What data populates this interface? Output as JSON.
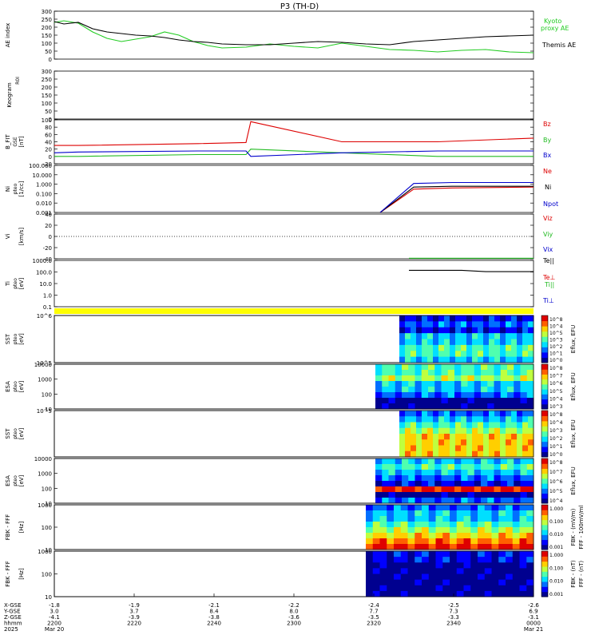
{
  "title": "P3 (TH-D)",
  "colors": {
    "kyoto": "#22cc22",
    "themis": "#000000",
    "bz": "#dd0000",
    "by": "#22bb22",
    "bx": "#0000cc",
    "ne": "#dd0000",
    "ni": "#000000",
    "npot": "#0000cc",
    "yellow_strip": "#ffff00"
  },
  "chart_data": [
    {
      "type": "line",
      "panel": "ae",
      "ylabel": "AE index",
      "ylim": [
        0,
        300
      ],
      "yticks": [
        "300",
        "250",
        "200",
        "150",
        "100",
        "50",
        "0"
      ],
      "legend": [
        "Kyoto",
        "proxy AE",
        "Themis AE"
      ],
      "series": [
        {
          "name": "Kyoto proxy AE",
          "x": [
            0,
            0.02,
            0.05,
            0.08,
            0.11,
            0.14,
            0.17,
            0.2,
            0.23,
            0.26,
            0.29,
            0.32,
            0.35,
            0.4,
            0.45,
            0.5,
            0.55,
            0.6,
            0.65,
            0.7,
            0.75,
            0.8,
            0.85,
            0.9,
            0.95,
            1.0
          ],
          "values": [
            230,
            240,
            225,
            170,
            130,
            110,
            125,
            140,
            170,
            150,
            110,
            85,
            70,
            75,
            95,
            80,
            70,
            100,
            80,
            60,
            55,
            45,
            55,
            60,
            45,
            40
          ]
        },
        {
          "name": "Themis AE",
          "x": [
            0,
            0.02,
            0.05,
            0.08,
            0.11,
            0.14,
            0.17,
            0.2,
            0.23,
            0.26,
            0.29,
            0.32,
            0.35,
            0.4,
            0.45,
            0.5,
            0.55,
            0.6,
            0.65,
            0.7,
            0.75,
            0.8,
            0.85,
            0.9,
            0.95,
            1.0
          ],
          "values": [
            235,
            220,
            230,
            190,
            170,
            160,
            150,
            145,
            135,
            120,
            110,
            105,
            95,
            90,
            90,
            100,
            110,
            105,
            95,
            90,
            110,
            120,
            130,
            140,
            145,
            150
          ]
        }
      ]
    },
    {
      "type": "line",
      "panel": "kp",
      "ylabel": "Keogram",
      "sublabel": "R0I",
      "ylim": [
        0,
        300
      ],
      "yticks": [
        "300",
        "250",
        "200",
        "150",
        "100",
        "50",
        "0"
      ]
    },
    {
      "type": "line",
      "panel": "bfit",
      "ylabel": "B_FIT",
      "sublabel": "GSE",
      "unit": "[nT]",
      "ylim": [
        -20,
        100
      ],
      "yticks": [
        "100",
        "80",
        "60",
        "40",
        "20",
        "0",
        "-20"
      ],
      "legend": [
        "Bz",
        "By",
        "Bx"
      ],
      "series": [
        {
          "name": "Bz",
          "x": [
            0,
            0.05,
            0.3,
            0.4,
            0.41,
            0.6,
            0.8,
            1.0
          ],
          "values": [
            30,
            30,
            35,
            38,
            95,
            40,
            40,
            50
          ]
        },
        {
          "name": "By",
          "x": [
            0,
            0.05,
            0.3,
            0.4,
            0.41,
            0.6,
            0.8,
            1.0
          ],
          "values": [
            0,
            0,
            5,
            5,
            20,
            10,
            0,
            0
          ]
        },
        {
          "name": "Bx",
          "x": [
            0,
            0.05,
            0.3,
            0.4,
            0.41,
            0.6,
            0.8,
            1.0
          ],
          "values": [
            10,
            12,
            15,
            15,
            0,
            10,
            15,
            15
          ]
        }
      ]
    },
    {
      "type": "line",
      "panel": "ni",
      "ylabel": "Ni",
      "sublabel": "pteo",
      "unit": "[1/cc]",
      "yticks": [
        "100.000",
        "10.000",
        "1.000",
        "0.100",
        "0.010",
        "0.001"
      ],
      "legend": [
        "Ne",
        "Ni",
        "Npot"
      ],
      "series": [
        {
          "name": "Ne",
          "x": [
            0.68,
            0.75,
            0.83,
            1.0
          ],
          "values": [
            0.001,
            0.3,
            0.4,
            0.5
          ]
        },
        {
          "name": "Ni",
          "x": [
            0.68,
            0.75,
            0.83,
            1.0
          ],
          "values": [
            0.001,
            0.5,
            0.6,
            0.6
          ]
        },
        {
          "name": "Npot",
          "x": [
            0.68,
            0.75,
            0.83,
            1.0
          ],
          "values": [
            0.001,
            1.2,
            1.5,
            1.5
          ]
        }
      ]
    },
    {
      "type": "line",
      "panel": "vi",
      "ylabel": "Vi",
      "unit": "[km/s]",
      "ylim": [
        -40,
        40
      ],
      "yticks": [
        "40",
        "20",
        "0",
        "-20",
        "-40"
      ],
      "legend": [
        "Viz",
        "Viy",
        "Vix"
      ]
    },
    {
      "type": "line",
      "panel": "ti",
      "ylabel": "Ti",
      "sublabel": "pteo",
      "unit": "[eV]",
      "yticks": [
        "1000.0",
        "100.0",
        "10.0",
        "1.0",
        "0.1"
      ],
      "legend": [
        "Te||",
        "Te⊥",
        "Ti||",
        "Ti⊥"
      ],
      "series": [
        {
          "name": "Te||",
          "x": [
            0.74,
            1.0
          ],
          "values": [
            2500,
            2500
          ]
        },
        {
          "name": "Te⊥",
          "x": [
            0.74,
            0.85,
            0.9,
            1.0
          ],
          "values": [
            200,
            200,
            150,
            150
          ]
        }
      ]
    },
    {
      "type": "heatmap",
      "panel": "sst1",
      "ylabel": "SST",
      "sublabel": "pteo",
      "unit": "[eV]",
      "yticks": [
        "10^6",
        "10^5"
      ],
      "colorbar": [
        "10^8",
        "10^4",
        "10^5",
        "10^3",
        "10^2",
        "10^1",
        "10^0"
      ],
      "cbar_label": "Eflux, EFU"
    },
    {
      "type": "heatmap",
      "panel": "esa1",
      "ylabel": "ESA",
      "sublabel": "pteo",
      "unit": "[eV]",
      "yticks": [
        "10000",
        "1000",
        "100",
        "10"
      ],
      "colorbar": [
        "10^8",
        "10^7",
        "10^6",
        "10^5",
        "10^4",
        "10^3"
      ],
      "cbar_label": "Eflux, EFU"
    },
    {
      "type": "heatmap",
      "panel": "sst2",
      "ylabel": "SST",
      "sublabel": "pteo",
      "unit": "[eV]",
      "yticks": [
        "10^5"
      ],
      "colorbar": [
        "10^8",
        "10^4",
        "10^3",
        "10^2",
        "10^1",
        "10^0"
      ],
      "cbar_label": "Eflux, EFU"
    },
    {
      "type": "heatmap",
      "panel": "esa2",
      "ylabel": "ESA",
      "sublabel": "pteo",
      "unit": "[eV]",
      "yticks": [
        "10000",
        "1000",
        "100",
        "10"
      ],
      "colorbar": [
        "10^8",
        "10^7",
        "10^6",
        "10^5",
        "10^4"
      ],
      "cbar_label": "Eflux, EFU"
    },
    {
      "type": "heatmap",
      "panel": "fbk1",
      "ylabel": "FBK - FFF",
      "unit": "[Hz]",
      "yticks": [
        "1000",
        "100",
        "10"
      ],
      "colorbar": [
        "1.000",
        "0.100",
        "0.010",
        "0.001"
      ],
      "cbar_label": "FBK - (mV/m)",
      "cbar_label2": "FFF - 100mV/ml"
    },
    {
      "type": "heatmap",
      "panel": "fbk2",
      "ylabel": "FBK - FFF",
      "unit": "[Hz]",
      "yticks": [
        "1000",
        "100",
        "10"
      ],
      "colorbar": [
        "1.000",
        "0.100",
        "0.010",
        "0.001"
      ],
      "cbar_label": "FBK - (nT)",
      "cbar_label2": "FFF - (nT)"
    }
  ],
  "xaxis": {
    "row_labels": [
      "X-GSE",
      "Y-GSE",
      "Z-GSE",
      "hhmm",
      "2025"
    ],
    "ticks": [
      {
        "x": "-1.8",
        "y": "3.0",
        "z": "-4.1",
        "t": "2200",
        "date": "Mar 20"
      },
      {
        "x": "-1.9",
        "y": "3.7",
        "z": "-3.9",
        "t": "2220",
        "date": ""
      },
      {
        "x": "-2.1",
        "y": "8.4",
        "z": "-3.8",
        "t": "2240",
        "date": ""
      },
      {
        "x": "-2.2",
        "y": "8.0",
        "z": "-3.6",
        "t": "2300",
        "date": ""
      },
      {
        "x": "-2.4",
        "y": "7.7",
        "z": "-3.5",
        "t": "2320",
        "date": ""
      },
      {
        "x": "-2.5",
        "y": "7.3",
        "z": "-3.3",
        "t": "2340",
        "date": ""
      },
      {
        "x": "-2.6",
        "y": "6.9",
        "z": "-3.1",
        "t": "0000",
        "date": "Mar 21"
      }
    ]
  }
}
